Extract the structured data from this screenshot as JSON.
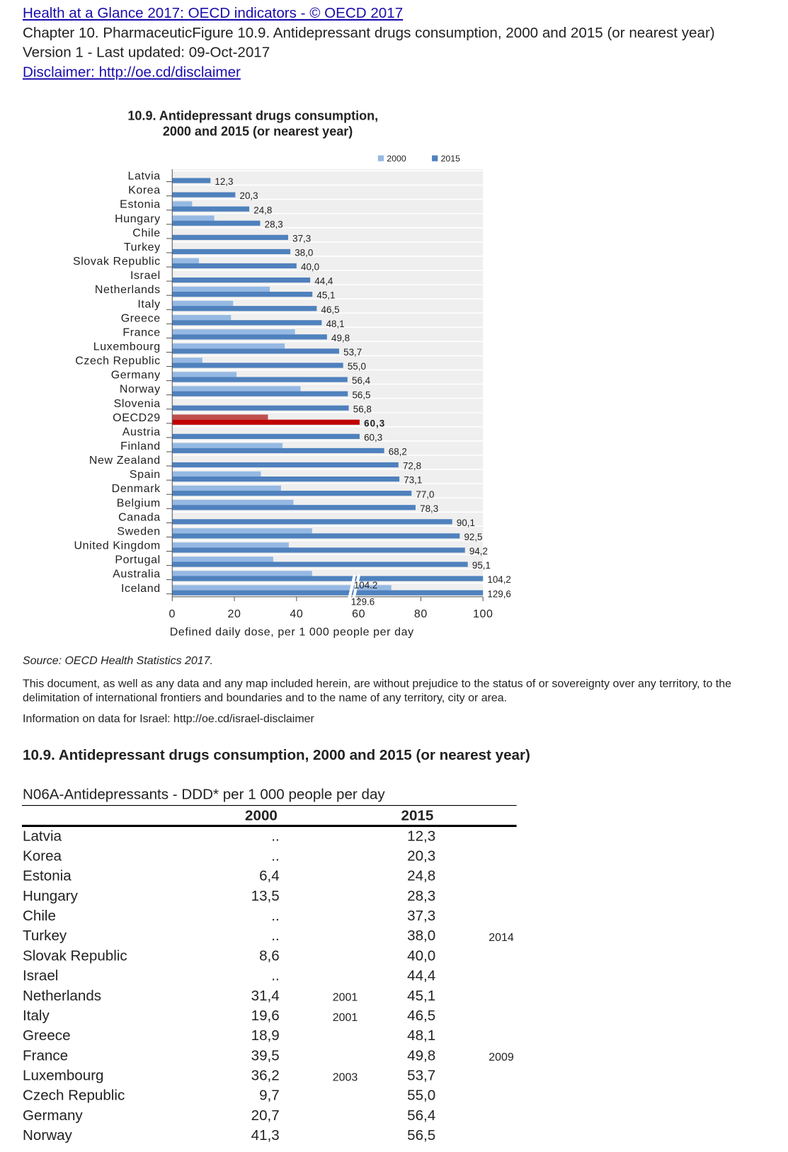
{
  "header": {
    "link": "Health at a Glance 2017: OECD indicators - © OECD 2017",
    "chapter": "Chapter 10. PharmaceuticFigure 10.9. Antidepressant drugs consumption, 2000 and 2015 (or nearest year)",
    "version": "Version 1 - Last updated: 09-Oct-2017",
    "disclaimer": "Disclaimer: http://oe.cd/disclaimer"
  },
  "chart_data": {
    "type": "hbar",
    "title": [
      "10.9. Antidepressant drugs consumption,",
      "2000 and 2015 (or nearest year)"
    ],
    "xlabel": "Defined daily dose, per 1 000 people per day",
    "categories": [
      "Latvia",
      "Korea",
      "Estonia",
      "Hungary",
      "Chile",
      "Turkey",
      "Slovak Republic",
      "Israel",
      "Netherlands",
      "Italy",
      "Greece",
      "France",
      "Luxembourg",
      "Czech Republic",
      "Germany",
      "Norway",
      "Slovenia",
      "OECD29",
      "Austria",
      "Finland",
      "New Zealand",
      "Spain",
      "Denmark",
      "Belgium",
      "Canada",
      "Sweden",
      "United Kingdom",
      "Portugal",
      "Australia",
      "Iceland"
    ],
    "series": [
      {
        "name": "2000",
        "color": "#95b9e3",
        "values": [
          null,
          null,
          6.4,
          13.5,
          null,
          null,
          8.6,
          null,
          31.4,
          19.6,
          18.9,
          39.5,
          36.2,
          9.7,
          20.7,
          41.3,
          null,
          30.8,
          null,
          35.5,
          null,
          28.5,
          35,
          39,
          null,
          45,
          37.5,
          32.5,
          45,
          70.5
        ]
      },
      {
        "name": "2015",
        "color": "#4f81bd",
        "values": [
          12.3,
          20.3,
          24.8,
          28.3,
          37.3,
          38.0,
          40.0,
          44.4,
          45.1,
          46.5,
          48.1,
          49.8,
          53.7,
          55.0,
          56.4,
          56.5,
          56.8,
          60.3,
          60.3,
          68.2,
          72.8,
          73.1,
          77.0,
          78.3,
          90.1,
          92.5,
          94.2,
          95.1,
          104.2,
          129.6
        ],
        "value_labels": [
          "12,3",
          "20,3",
          "24,8",
          "28,3",
          "37,3",
          "38,0",
          "40,0",
          "44,4",
          "45,1",
          "46,5",
          "48,1",
          "49,8",
          "53,7",
          "55,0",
          "56,4",
          "56,5",
          "56,8",
          "60,3",
          "60,3",
          "68,2",
          "72,8",
          "73,1",
          "77,0",
          "78,3",
          "90,1",
          "92,5",
          "94,2",
          "95,1",
          "104,2",
          "129,6"
        ]
      }
    ],
    "highlight": {
      "index": 17,
      "colors": [
        "#c0504d",
        "#c00000"
      ]
    },
    "xlim": [
      0,
      100
    ],
    "xticks": [
      0,
      20,
      40,
      60,
      80,
      100
    ],
    "annotations": [
      "104.2",
      "129.6"
    ],
    "legend": "top-right"
  },
  "notes": {
    "source": "Source: OECD Health Statistics 2017.",
    "legal": [
      "This document, as well as any data and any map included herein, are without prejudice to the status of or sovereignty over any territory, to the",
      "delimitation of international frontiers and boundaries and to the name of any territory, city or area."
    ],
    "israel": "Information on data for Israel: http://oe.cd/israel-disclaimer"
  },
  "table": {
    "title": "10.9. Antidepressant drugs consumption, 2000 and 2015 (or nearest year)",
    "caption": "N06A-Antidepressants - DDD* per 1 000 people per day",
    "columns": [
      "2000",
      "2015"
    ],
    "rows": [
      [
        "Latvia",
        "..",
        null,
        "12,3",
        null
      ],
      [
        "Korea",
        "..",
        null,
        "20,3",
        null
      ],
      [
        "Estonia",
        "6,4",
        null,
        "24,8",
        null
      ],
      [
        "Hungary",
        "13,5",
        null,
        "28,3",
        null
      ],
      [
        "Chile",
        "..",
        null,
        "37,3",
        null
      ],
      [
        "Turkey",
        "..",
        null,
        "38,0",
        "2014"
      ],
      [
        "Slovak Republic",
        "8,6",
        null,
        "40,0",
        null
      ],
      [
        "Israel",
        "..",
        null,
        "44,4",
        null
      ],
      [
        "Netherlands",
        "31,4",
        "2001",
        "45,1",
        null
      ],
      [
        "Italy",
        "19,6",
        "2001",
        "46,5",
        null
      ],
      [
        "Greece",
        "18,9",
        null,
        "48,1",
        null
      ],
      [
        "France",
        "39,5",
        null,
        "49,8",
        "2009"
      ],
      [
        "Luxembourg",
        "36,2",
        "2003",
        "53,7",
        null
      ],
      [
        "Czech Republic",
        "9,7",
        null,
        "55,0",
        null
      ],
      [
        "Germany",
        "20,7",
        null,
        "56,4",
        null
      ],
      [
        "Norway",
        "41,3",
        null,
        "56,5",
        null
      ]
    ]
  }
}
